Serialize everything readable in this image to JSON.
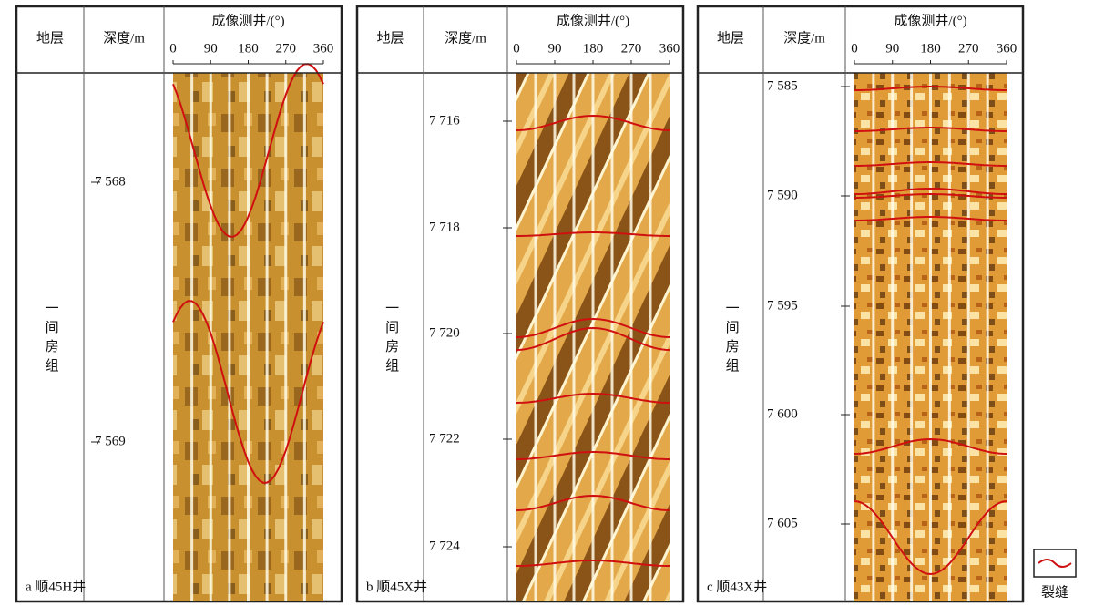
{
  "panels": [
    {
      "header": {
        "formation": "地层",
        "depth": "深度/m",
        "image": "成像测井/(°)"
      },
      "azimuth_ticks": [
        "0",
        "90",
        "180",
        "270",
        "360"
      ],
      "depth_ticks": [
        "7 568",
        "7 569"
      ],
      "formation": "一间房组",
      "caption": "a 顺45H井"
    },
    {
      "header": {
        "formation": "地层",
        "depth": "深度/m",
        "image": "成像测井/(°)"
      },
      "azimuth_ticks": [
        "0",
        "90",
        "180",
        "270",
        "360"
      ],
      "depth_ticks": [
        "7 716",
        "7 718",
        "7 720",
        "7 722",
        "7 724"
      ],
      "formation": "一间房组",
      "caption": "b 顺45X井"
    },
    {
      "header": {
        "formation": "地层",
        "depth": "深度/m",
        "image": "成像测井/(°)"
      },
      "azimuth_ticks": [
        "0",
        "90",
        "180",
        "270",
        "360"
      ],
      "depth_ticks": [
        "7 585",
        "7 590",
        "7 595",
        "7 600",
        "7 605"
      ],
      "formation": "一间房组",
      "caption": "c 顺43X井"
    }
  ],
  "legend": {
    "label": "裂缝"
  }
}
